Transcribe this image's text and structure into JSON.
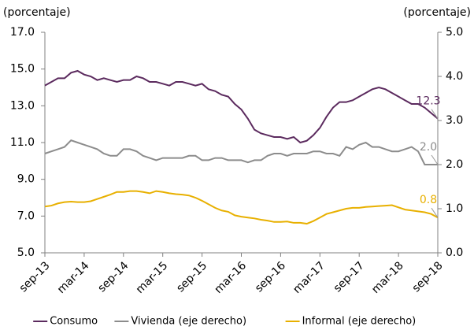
{
  "chart_data": {
    "type": "line",
    "y_label": "(porcentaje)",
    "y2_label": "(porcentaje)",
    "categories": [
      "sep-13",
      null,
      null,
      null,
      null,
      null,
      "mar-14",
      null,
      null,
      null,
      null,
      null,
      "sep-14",
      null,
      null,
      null,
      null,
      null,
      "mar-15",
      null,
      null,
      null,
      null,
      null,
      "sep-15",
      null,
      null,
      null,
      null,
      null,
      "mar-16",
      null,
      null,
      null,
      null,
      null,
      "sep-16",
      null,
      null,
      null,
      null,
      null,
      "mar-17",
      null,
      null,
      null,
      null,
      null,
      "sep-17",
      null,
      null,
      null,
      null,
      null,
      "mar-18",
      null,
      null,
      null,
      null,
      null,
      "sep-18"
    ],
    "ylim": [
      5,
      17
    ],
    "yticks": [
      {
        "value": 5,
        "label": "5.0"
      },
      {
        "value": 7,
        "label": "7.0"
      },
      {
        "value": 9,
        "label": "9.0"
      },
      {
        "value": 11,
        "label": "11.0"
      },
      {
        "value": 13,
        "label": "13.0"
      },
      {
        "value": 15,
        "label": "15.0"
      },
      {
        "value": 17,
        "label": "17.0"
      }
    ],
    "y2lim": [
      0,
      5
    ],
    "y2ticks": [
      {
        "value": 0,
        "label": "0.0"
      },
      {
        "value": 1,
        "label": "1.0"
      },
      {
        "value": 2,
        "label": "2.0"
      },
      {
        "value": 3,
        "label": "3.0"
      },
      {
        "value": 4,
        "label": "4.0"
      },
      {
        "value": 5,
        "label": "5.0"
      }
    ],
    "grid": false,
    "legend": "bottom",
    "series": [
      {
        "name": "Consumo",
        "color": "#5b2a5e",
        "values": [
          14.1,
          14.3,
          14.5,
          14.5,
          14.8,
          14.9,
          14.7,
          14.6,
          14.4,
          14.5,
          14.4,
          14.3,
          14.4,
          14.4,
          14.6,
          14.5,
          14.3,
          14.3,
          14.2,
          14.1,
          14.3,
          14.3,
          14.2,
          14.1,
          14.2,
          13.9,
          13.8,
          13.6,
          13.5,
          13.1,
          12.8,
          12.3,
          11.7,
          11.5,
          11.4,
          11.3,
          11.3,
          11.2,
          11.3,
          11.0,
          11.1,
          11.4,
          11.8,
          12.4,
          12.9,
          13.2,
          13.2,
          13.3,
          13.5,
          13.7,
          13.9,
          14.0,
          13.9,
          13.7,
          13.5,
          13.3,
          13.1,
          13.1,
          12.9,
          12.6,
          12.3
        ],
        "value_labels": [
          null,
          null,
          null,
          null,
          null,
          null,
          null,
          null,
          null,
          null,
          null,
          null,
          null,
          null,
          null,
          null,
          null,
          null,
          null,
          null,
          null,
          null,
          null,
          null,
          null,
          null,
          null,
          null,
          null,
          null,
          null,
          null,
          null,
          null,
          null,
          null,
          null,
          null,
          null,
          null,
          null,
          null,
          null,
          null,
          null,
          null,
          null,
          null,
          null,
          null,
          null,
          null,
          null,
          null,
          null,
          null,
          null,
          null,
          null,
          null,
          "12.3"
        ]
      },
      {
        "name": "Vivienda (eje derecho)",
        "color": "#8c8c8c",
        "axis": "y2",
        "values": [
          2.25,
          2.3,
          2.35,
          2.4,
          2.55,
          2.5,
          2.45,
          2.4,
          2.35,
          2.25,
          2.2,
          2.2,
          2.35,
          2.35,
          2.3,
          2.2,
          2.15,
          2.1,
          2.15,
          2.15,
          2.15,
          2.15,
          2.2,
          2.2,
          2.1,
          2.1,
          2.15,
          2.15,
          2.1,
          2.1,
          2.1,
          2.05,
          2.1,
          2.1,
          2.2,
          2.25,
          2.25,
          2.2,
          2.25,
          2.25,
          2.25,
          2.3,
          2.3,
          2.25,
          2.25,
          2.2,
          2.4,
          2.35,
          2.45,
          2.5,
          2.4,
          2.4,
          2.35,
          2.3,
          2.3,
          2.35,
          2.4,
          2.3,
          2.0,
          2.0,
          2.0
        ],
        "value_labels": [
          null,
          null,
          null,
          null,
          null,
          null,
          null,
          null,
          null,
          null,
          null,
          null,
          null,
          null,
          null,
          null,
          null,
          null,
          null,
          null,
          null,
          null,
          null,
          null,
          null,
          null,
          null,
          null,
          null,
          null,
          null,
          null,
          null,
          null,
          null,
          null,
          null,
          null,
          null,
          null,
          null,
          null,
          null,
          null,
          null,
          null,
          null,
          null,
          null,
          null,
          null,
          null,
          null,
          null,
          null,
          null,
          null,
          null,
          null,
          null,
          "2.0"
        ]
      },
      {
        "name": "Informal (eje derecho)",
        "color": "#e8b000",
        "axis": "y2",
        "values": [
          1.05,
          1.07,
          1.12,
          1.15,
          1.16,
          1.15,
          1.15,
          1.17,
          1.22,
          1.27,
          1.32,
          1.38,
          1.38,
          1.4,
          1.4,
          1.38,
          1.35,
          1.4,
          1.38,
          1.35,
          1.33,
          1.32,
          1.3,
          1.25,
          1.18,
          1.1,
          1.02,
          0.96,
          0.93,
          0.85,
          0.82,
          0.8,
          0.78,
          0.75,
          0.73,
          0.7,
          0.7,
          0.71,
          0.68,
          0.68,
          0.66,
          0.72,
          0.8,
          0.88,
          0.92,
          0.96,
          1.0,
          1.02,
          1.02,
          1.04,
          1.05,
          1.06,
          1.07,
          1.08,
          1.03,
          0.98,
          0.96,
          0.94,
          0.92,
          0.88,
          0.8
        ],
        "value_labels": [
          null,
          null,
          null,
          null,
          null,
          null,
          null,
          null,
          null,
          null,
          null,
          null,
          null,
          null,
          null,
          null,
          null,
          null,
          null,
          null,
          null,
          null,
          null,
          null,
          null,
          null,
          null,
          null,
          null,
          null,
          null,
          null,
          null,
          null,
          null,
          null,
          null,
          null,
          null,
          null,
          null,
          null,
          null,
          null,
          null,
          null,
          null,
          null,
          null,
          null,
          null,
          null,
          null,
          null,
          null,
          null,
          null,
          null,
          null,
          null,
          "0.8"
        ]
      }
    ]
  }
}
